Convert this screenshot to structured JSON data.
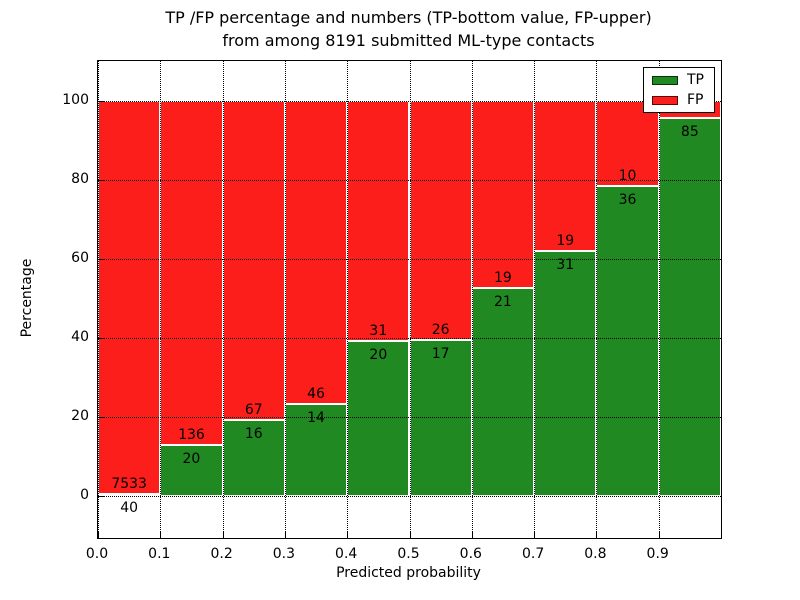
{
  "title": {
    "line1": "TP /FP percentage and numbers (TP-bottom value, FP-upper)",
    "line2": "from among 8191 submitted ML-type contacts"
  },
  "axes": {
    "xlabel": "Predicted probability",
    "ylabel": "Percentage"
  },
  "chart_data": {
    "type": "bar",
    "stacked": true,
    "title": "TP /FP percentage and numbers (TP-bottom value, FP-upper) from among 8191 submitted ML-type contacts",
    "xlabel": "Predicted probability",
    "ylabel": "Percentage",
    "total_submitted_contacts": 8191,
    "x_tick_labels": [
      "0.0",
      "0.1",
      "0.2",
      "0.3",
      "0.4",
      "0.5",
      "0.6",
      "0.7",
      "0.8",
      "0.9"
    ],
    "y_ticks": [
      0,
      20,
      40,
      60,
      80,
      100
    ],
    "xlim": [
      0.0,
      1.0
    ],
    "ylim": [
      -10.6,
      110
    ],
    "grid": "dotted-black",
    "colors": {
      "tp": "#208922",
      "fp": "#fc1e1a"
    },
    "legend": {
      "position": "upper-right",
      "entries": [
        {
          "label": "TP",
          "color": "#208922"
        },
        {
          "label": "FP",
          "color": "#fc1e1a"
        }
      ]
    },
    "bins": [
      {
        "x_start": 0.0,
        "x_end": 0.1,
        "tp_count": 40,
        "fp_count": 7533,
        "tp_pct": 0.5
      },
      {
        "x_start": 0.1,
        "x_end": 0.2,
        "tp_count": 20,
        "fp_count": 136,
        "tp_pct": 12.8
      },
      {
        "x_start": 0.2,
        "x_end": 0.3,
        "tp_count": 16,
        "fp_count": 67,
        "tp_pct": 19.3
      },
      {
        "x_start": 0.3,
        "x_end": 0.4,
        "tp_count": 14,
        "fp_count": 46,
        "tp_pct": 23.3
      },
      {
        "x_start": 0.4,
        "x_end": 0.5,
        "tp_count": 20,
        "fp_count": 31,
        "tp_pct": 39.2
      },
      {
        "x_start": 0.5,
        "x_end": 0.6,
        "tp_count": 17,
        "fp_count": 26,
        "tp_pct": 39.5
      },
      {
        "x_start": 0.6,
        "x_end": 0.7,
        "tp_count": 21,
        "fp_count": 19,
        "tp_pct": 52.5
      },
      {
        "x_start": 0.7,
        "x_end": 0.8,
        "tp_count": 31,
        "fp_count": 19,
        "tp_pct": 62.0
      },
      {
        "x_start": 0.8,
        "x_end": 0.9,
        "tp_count": 36,
        "fp_count": 10,
        "tp_pct": 78.3
      },
      {
        "x_start": 0.9,
        "x_end": 1.0,
        "tp_count": 85,
        "fp_count": null,
        "tp_pct": 95.5
      }
    ]
  }
}
